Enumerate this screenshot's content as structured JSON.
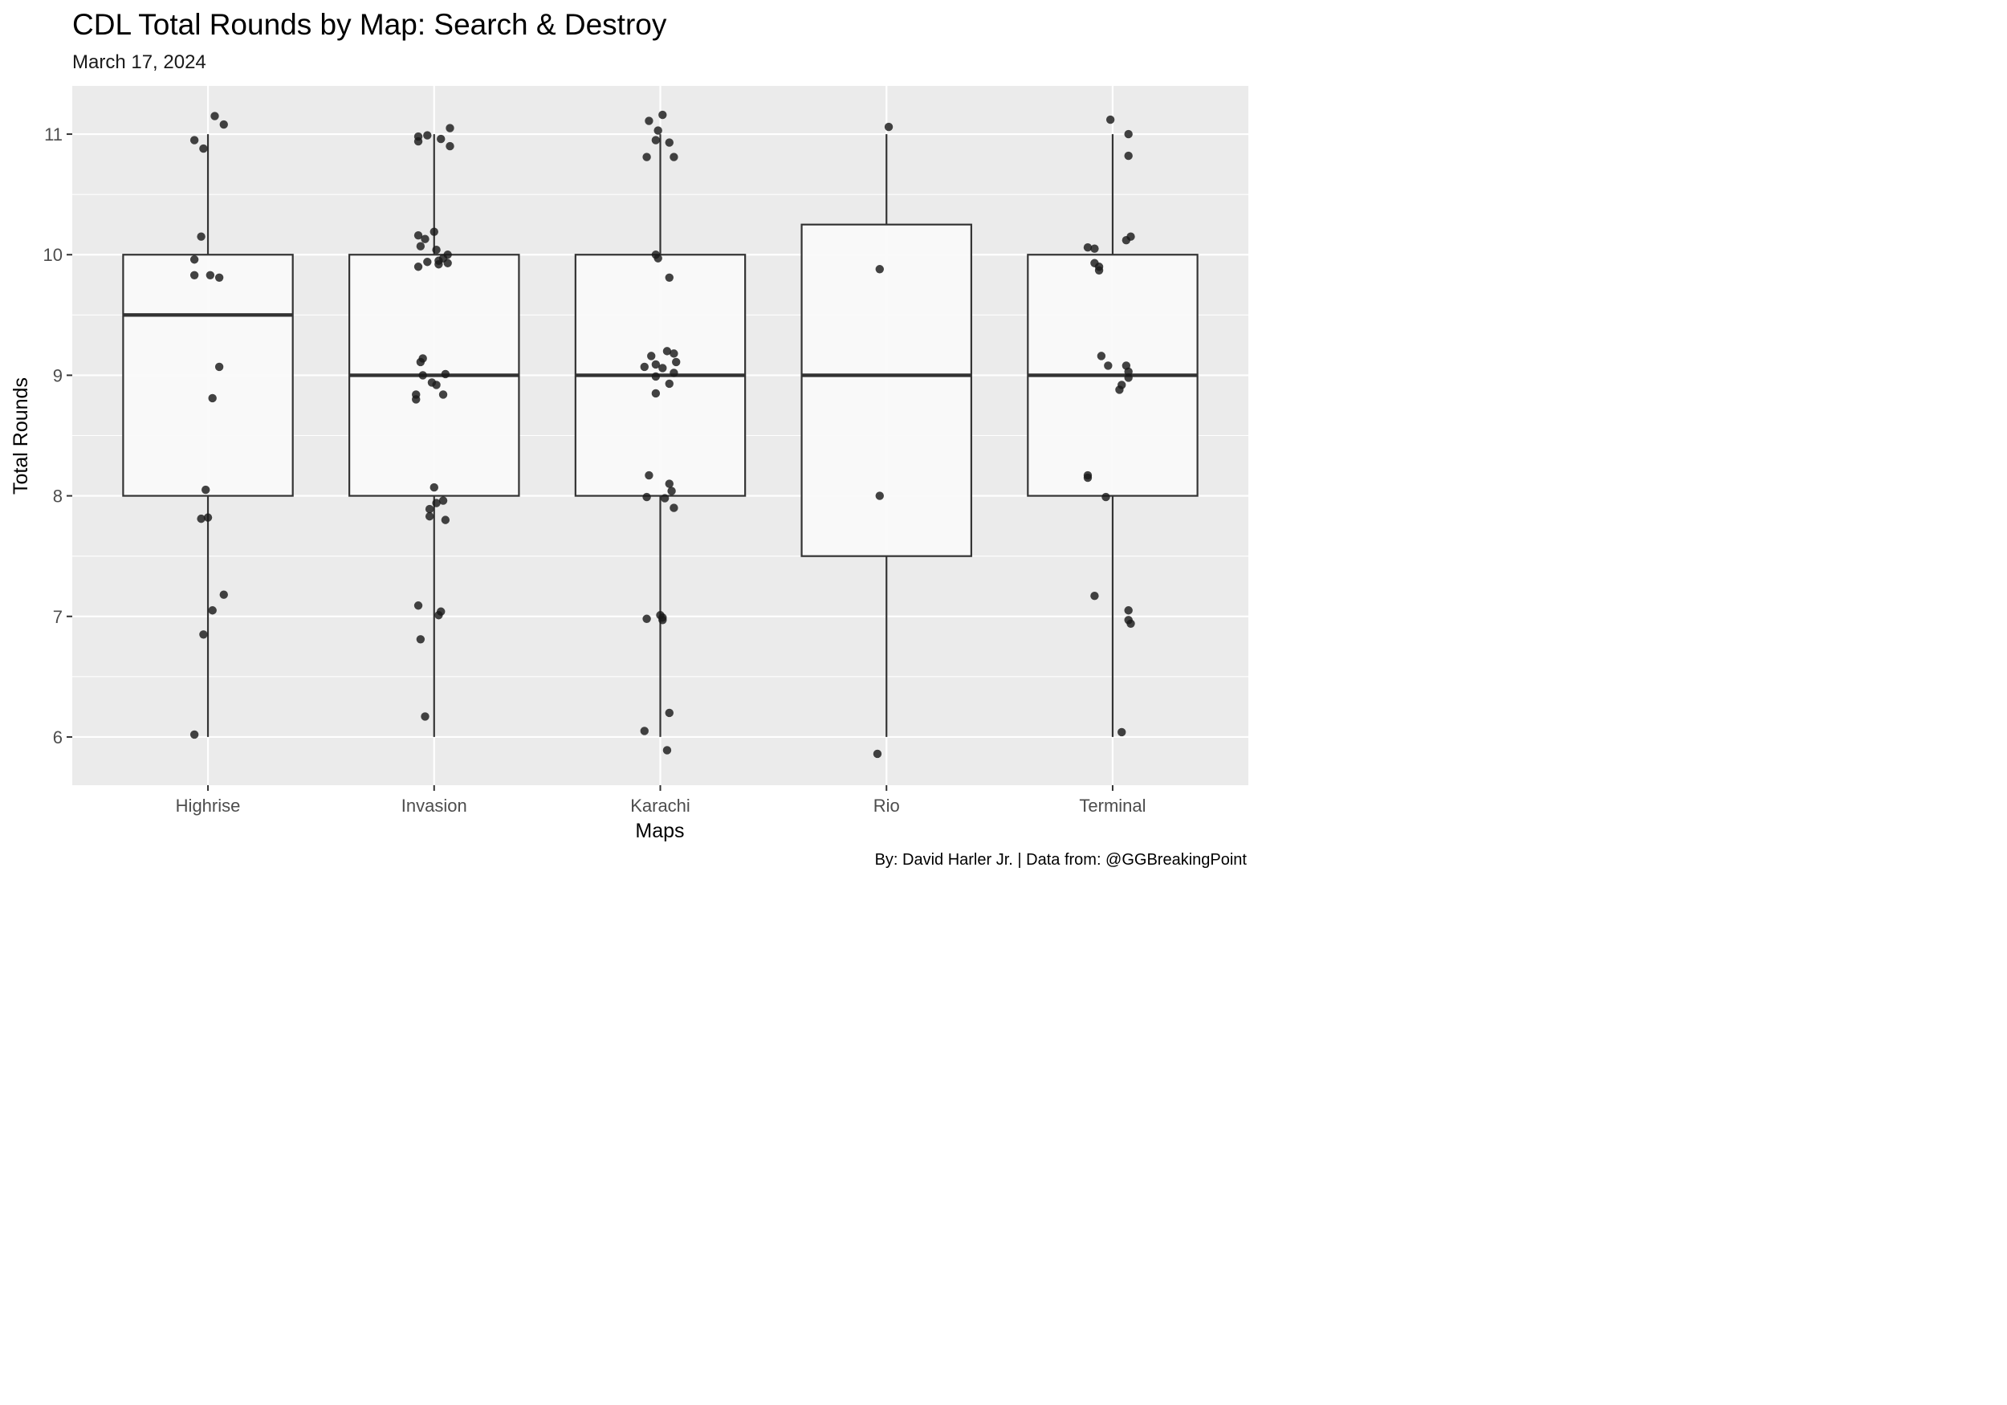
{
  "title": "CDL Total Rounds by Map: Search & Destroy",
  "subtitle": "March 17, 2024",
  "caption": "By: David Harler Jr. | Data from: @GGBreakingPoint",
  "colors": {
    "panel_background": "#ebebeb",
    "grid": "#ffffff",
    "box_fill": "#fafafa",
    "box_outline": "#333333",
    "point": "#1a1a1a"
  },
  "chart_data": {
    "type": "boxplot",
    "xlabel": "Maps",
    "ylabel": "Total Rounds",
    "ylim": [
      5.6,
      11.4
    ],
    "y_ticks": [
      6,
      7,
      8,
      9,
      10,
      11
    ],
    "categories": [
      "Highrise",
      "Invasion",
      "Karachi",
      "Rio",
      "Terminal"
    ],
    "grid": true,
    "boxes": [
      {
        "category": "Highrise",
        "lower_whisker": 6,
        "q1": 8,
        "median": 9.5,
        "q3": 10,
        "upper_whisker": 11
      },
      {
        "category": "Invasion",
        "lower_whisker": 6,
        "q1": 8,
        "median": 9,
        "q3": 10,
        "upper_whisker": 11
      },
      {
        "category": "Karachi",
        "lower_whisker": 6,
        "q1": 8,
        "median": 9,
        "q3": 10,
        "upper_whisker": 11
      },
      {
        "category": "Rio",
        "lower_whisker": 6,
        "q1": 7.5,
        "median": 9,
        "q3": 10.25,
        "upper_whisker": 11
      },
      {
        "category": "Terminal",
        "lower_whisker": 6,
        "q1": 8,
        "median": 9,
        "q3": 10,
        "upper_whisker": 11
      }
    ],
    "points": [
      {
        "category": "Highrise",
        "x_offset": -0.06,
        "y": 10.95
      },
      {
        "category": "Highrise",
        "x_offset": -0.02,
        "y": 10.88
      },
      {
        "category": "Highrise",
        "x_offset": 0.03,
        "y": 11.15
      },
      {
        "category": "Highrise",
        "x_offset": 0.07,
        "y": 11.08
      },
      {
        "category": "Highrise",
        "x_offset": -0.03,
        "y": 10.15
      },
      {
        "category": "Highrise",
        "x_offset": -0.06,
        "y": 9.96
      },
      {
        "category": "Highrise",
        "x_offset": -0.06,
        "y": 9.83
      },
      {
        "category": "Highrise",
        "x_offset": 0.01,
        "y": 9.83
      },
      {
        "category": "Highrise",
        "x_offset": 0.05,
        "y": 9.81
      },
      {
        "category": "Highrise",
        "x_offset": 0.05,
        "y": 9.07
      },
      {
        "category": "Highrise",
        "x_offset": 0.02,
        "y": 8.81
      },
      {
        "category": "Highrise",
        "x_offset": -0.01,
        "y": 8.05
      },
      {
        "category": "Highrise",
        "x_offset": -0.03,
        "y": 7.81
      },
      {
        "category": "Highrise",
        "x_offset": 0.0,
        "y": 7.82
      },
      {
        "category": "Highrise",
        "x_offset": 0.07,
        "y": 7.18
      },
      {
        "category": "Highrise",
        "x_offset": 0.02,
        "y": 7.05
      },
      {
        "category": "Highrise",
        "x_offset": -0.02,
        "y": 6.85
      },
      {
        "category": "Highrise",
        "x_offset": -0.06,
        "y": 6.02
      },
      {
        "category": "Invasion",
        "x_offset": -0.07,
        "y": 10.98
      },
      {
        "category": "Invasion",
        "x_offset": -0.07,
        "y": 10.94
      },
      {
        "category": "Invasion",
        "x_offset": -0.03,
        "y": 10.99
      },
      {
        "category": "Invasion",
        "x_offset": 0.03,
        "y": 10.96
      },
      {
        "category": "Invasion",
        "x_offset": 0.07,
        "y": 11.05
      },
      {
        "category": "Invasion",
        "x_offset": 0.07,
        "y": 10.9
      },
      {
        "category": "Invasion",
        "x_offset": -0.07,
        "y": 10.16
      },
      {
        "category": "Invasion",
        "x_offset": -0.04,
        "y": 10.13
      },
      {
        "category": "Invasion",
        "x_offset": 0.0,
        "y": 10.19
      },
      {
        "category": "Invasion",
        "x_offset": -0.06,
        "y": 10.07
      },
      {
        "category": "Invasion",
        "x_offset": 0.01,
        "y": 10.04
      },
      {
        "category": "Invasion",
        "x_offset": 0.06,
        "y": 10.0
      },
      {
        "category": "Invasion",
        "x_offset": -0.03,
        "y": 9.94
      },
      {
        "category": "Invasion",
        "x_offset": 0.02,
        "y": 9.95
      },
      {
        "category": "Invasion",
        "x_offset": 0.04,
        "y": 9.97
      },
      {
        "category": "Invasion",
        "x_offset": 0.06,
        "y": 9.93
      },
      {
        "category": "Invasion",
        "x_offset": 0.02,
        "y": 9.92
      },
      {
        "category": "Invasion",
        "x_offset": -0.07,
        "y": 9.9
      },
      {
        "category": "Invasion",
        "x_offset": -0.05,
        "y": 9.14
      },
      {
        "category": "Invasion",
        "x_offset": -0.06,
        "y": 9.11
      },
      {
        "category": "Invasion",
        "x_offset": -0.05,
        "y": 9.0
      },
      {
        "category": "Invasion",
        "x_offset": 0.05,
        "y": 9.01
      },
      {
        "category": "Invasion",
        "x_offset": -0.01,
        "y": 8.94
      },
      {
        "category": "Invasion",
        "x_offset": 0.01,
        "y": 8.92
      },
      {
        "category": "Invasion",
        "x_offset": -0.08,
        "y": 8.84
      },
      {
        "category": "Invasion",
        "x_offset": -0.08,
        "y": 8.8
      },
      {
        "category": "Invasion",
        "x_offset": 0.04,
        "y": 8.84
      },
      {
        "category": "Invasion",
        "x_offset": 0.0,
        "y": 8.07
      },
      {
        "category": "Invasion",
        "x_offset": 0.01,
        "y": 7.94
      },
      {
        "category": "Invasion",
        "x_offset": 0.04,
        "y": 7.96
      },
      {
        "category": "Invasion",
        "x_offset": -0.02,
        "y": 7.89
      },
      {
        "category": "Invasion",
        "x_offset": -0.02,
        "y": 7.83
      },
      {
        "category": "Invasion",
        "x_offset": 0.05,
        "y": 7.8
      },
      {
        "category": "Invasion",
        "x_offset": -0.07,
        "y": 7.09
      },
      {
        "category": "Invasion",
        "x_offset": 0.03,
        "y": 7.04
      },
      {
        "category": "Invasion",
        "x_offset": 0.02,
        "y": 7.01
      },
      {
        "category": "Invasion",
        "x_offset": -0.06,
        "y": 6.81
      },
      {
        "category": "Invasion",
        "x_offset": -0.04,
        "y": 6.17
      },
      {
        "category": "Karachi",
        "x_offset": -0.05,
        "y": 11.11
      },
      {
        "category": "Karachi",
        "x_offset": 0.01,
        "y": 11.16
      },
      {
        "category": "Karachi",
        "x_offset": -0.01,
        "y": 11.03
      },
      {
        "category": "Karachi",
        "x_offset": -0.02,
        "y": 10.95
      },
      {
        "category": "Karachi",
        "x_offset": 0.04,
        "y": 10.93
      },
      {
        "category": "Karachi",
        "x_offset": -0.06,
        "y": 10.81
      },
      {
        "category": "Karachi",
        "x_offset": 0.06,
        "y": 10.81
      },
      {
        "category": "Karachi",
        "x_offset": -0.02,
        "y": 10.0
      },
      {
        "category": "Karachi",
        "x_offset": -0.01,
        "y": 9.97
      },
      {
        "category": "Karachi",
        "x_offset": 0.04,
        "y": 9.81
      },
      {
        "category": "Karachi",
        "x_offset": 0.03,
        "y": 9.2
      },
      {
        "category": "Karachi",
        "x_offset": 0.06,
        "y": 9.18
      },
      {
        "category": "Karachi",
        "x_offset": -0.04,
        "y": 9.16
      },
      {
        "category": "Karachi",
        "x_offset": 0.07,
        "y": 9.11
      },
      {
        "category": "Karachi",
        "x_offset": -0.02,
        "y": 9.09
      },
      {
        "category": "Karachi",
        "x_offset": -0.07,
        "y": 9.07
      },
      {
        "category": "Karachi",
        "x_offset": 0.01,
        "y": 9.06
      },
      {
        "category": "Karachi",
        "x_offset": 0.06,
        "y": 9.02
      },
      {
        "category": "Karachi",
        "x_offset": -0.02,
        "y": 8.99
      },
      {
        "category": "Karachi",
        "x_offset": 0.04,
        "y": 8.93
      },
      {
        "category": "Karachi",
        "x_offset": -0.02,
        "y": 8.85
      },
      {
        "category": "Karachi",
        "x_offset": -0.05,
        "y": 8.17
      },
      {
        "category": "Karachi",
        "x_offset": 0.04,
        "y": 8.1
      },
      {
        "category": "Karachi",
        "x_offset": 0.05,
        "y": 8.04
      },
      {
        "category": "Karachi",
        "x_offset": -0.06,
        "y": 7.99
      },
      {
        "category": "Karachi",
        "x_offset": 0.02,
        "y": 7.98
      },
      {
        "category": "Karachi",
        "x_offset": 0.06,
        "y": 7.9
      },
      {
        "category": "Karachi",
        "x_offset": -0.06,
        "y": 6.98
      },
      {
        "category": "Karachi",
        "x_offset": 0.0,
        "y": 7.01
      },
      {
        "category": "Karachi",
        "x_offset": 0.01,
        "y": 6.99
      },
      {
        "category": "Karachi",
        "x_offset": 0.01,
        "y": 6.97
      },
      {
        "category": "Karachi",
        "x_offset": 0.04,
        "y": 6.2
      },
      {
        "category": "Karachi",
        "x_offset": -0.07,
        "y": 6.05
      },
      {
        "category": "Karachi",
        "x_offset": 0.03,
        "y": 5.89
      },
      {
        "category": "Rio",
        "x_offset": 0.01,
        "y": 11.06
      },
      {
        "category": "Rio",
        "x_offset": -0.03,
        "y": 9.88
      },
      {
        "category": "Rio",
        "x_offset": -0.03,
        "y": 8.0
      },
      {
        "category": "Rio",
        "x_offset": -0.04,
        "y": 5.86
      },
      {
        "category": "Terminal",
        "x_offset": -0.01,
        "y": 11.12
      },
      {
        "category": "Terminal",
        "x_offset": 0.07,
        "y": 11.0
      },
      {
        "category": "Terminal",
        "x_offset": 0.07,
        "y": 10.82
      },
      {
        "category": "Terminal",
        "x_offset": 0.08,
        "y": 10.15
      },
      {
        "category": "Terminal",
        "x_offset": 0.06,
        "y": 10.12
      },
      {
        "category": "Terminal",
        "x_offset": -0.11,
        "y": 10.06
      },
      {
        "category": "Terminal",
        "x_offset": -0.08,
        "y": 10.05
      },
      {
        "category": "Terminal",
        "x_offset": -0.08,
        "y": 9.93
      },
      {
        "category": "Terminal",
        "x_offset": -0.06,
        "y": 9.9
      },
      {
        "category": "Terminal",
        "x_offset": -0.06,
        "y": 9.87
      },
      {
        "category": "Terminal",
        "x_offset": -0.05,
        "y": 9.16
      },
      {
        "category": "Terminal",
        "x_offset": -0.02,
        "y": 9.08
      },
      {
        "category": "Terminal",
        "x_offset": 0.06,
        "y": 9.08
      },
      {
        "category": "Terminal",
        "x_offset": 0.07,
        "y": 9.03
      },
      {
        "category": "Terminal",
        "x_offset": 0.07,
        "y": 8.98
      },
      {
        "category": "Terminal",
        "x_offset": 0.04,
        "y": 8.92
      },
      {
        "category": "Terminal",
        "x_offset": 0.03,
        "y": 8.88
      },
      {
        "category": "Terminal",
        "x_offset": -0.11,
        "y": 8.17
      },
      {
        "category": "Terminal",
        "x_offset": -0.11,
        "y": 8.15
      },
      {
        "category": "Terminal",
        "x_offset": -0.03,
        "y": 7.99
      },
      {
        "category": "Terminal",
        "x_offset": -0.08,
        "y": 7.17
      },
      {
        "category": "Terminal",
        "x_offset": 0.07,
        "y": 7.05
      },
      {
        "category": "Terminal",
        "x_offset": 0.07,
        "y": 6.97
      },
      {
        "category": "Terminal",
        "x_offset": 0.08,
        "y": 6.94
      },
      {
        "category": "Terminal",
        "x_offset": 0.04,
        "y": 6.04
      }
    ]
  }
}
